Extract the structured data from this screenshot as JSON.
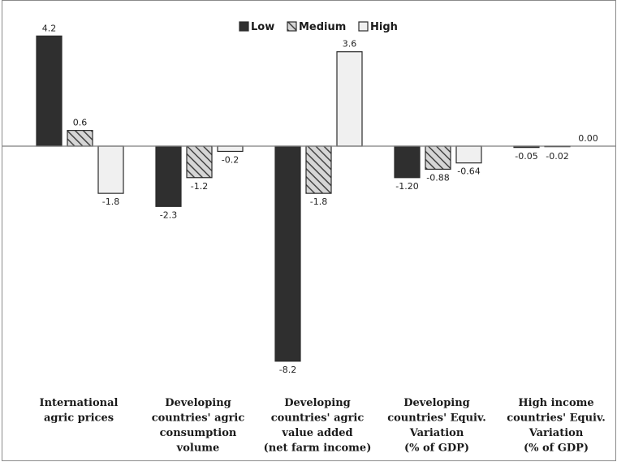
{
  "chart_data": {
    "type": "bar",
    "categories": [
      [
        "International",
        "agric prices"
      ],
      [
        "Developing",
        "countries' agric",
        "consumption",
        "volume"
      ],
      [
        "Developing",
        "countries' agric",
        "value added",
        "(net farm income)"
      ],
      [
        "Developing",
        "countries' Equiv.",
        "Variation",
        "(% of GDP)"
      ],
      [
        "High income",
        "countries' Equiv.",
        "Variation",
        "(% of GDP)"
      ]
    ],
    "series": [
      {
        "name": "Low",
        "values": [
          4.2,
          -2.3,
          -8.2,
          -1.2,
          -0.05
        ],
        "labels": [
          "4.2",
          "-2.3",
          "-8.2",
          "-1.20",
          "-0.05"
        ]
      },
      {
        "name": "Medium",
        "values": [
          0.6,
          -1.2,
          -1.8,
          -0.88,
          -0.02
        ],
        "labels": [
          "0.6",
          "-1.2",
          "-1.8",
          "-0.88",
          "-0.02"
        ]
      },
      {
        "name": "High",
        "values": [
          -1.8,
          -0.2,
          3.6,
          -0.64,
          0.0
        ],
        "labels": [
          "-1.8",
          "-0.2",
          "3.6",
          "-0.64",
          "0.00"
        ]
      }
    ],
    "colors": {
      "Low": "#2f2f2f",
      "Medium": "hatched",
      "High": "#f0f0f0"
    },
    "legend_position": "top-center",
    "ylim": [
      -8.2,
      4.2
    ],
    "grid": false,
    "title": "",
    "xlabel": "",
    "ylabel": ""
  }
}
